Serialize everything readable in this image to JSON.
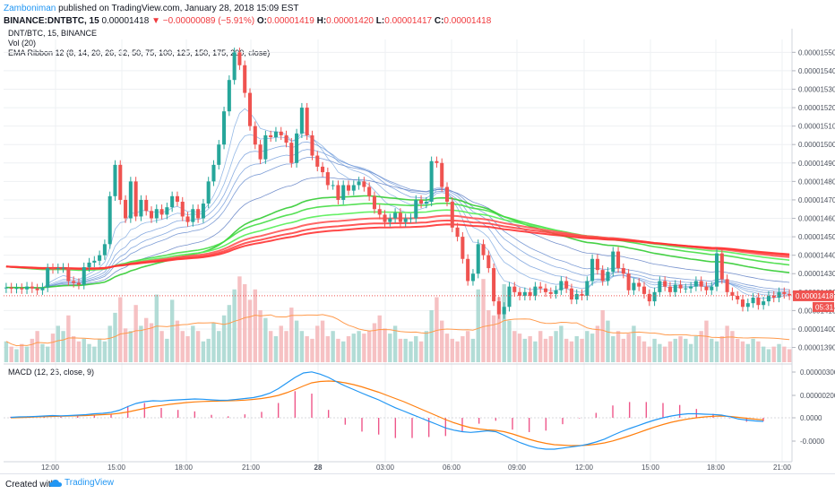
{
  "header": {
    "author": "Zamboniman",
    "published_text": "published on TradingView.com, January 28, 2018 15:09 EST",
    "symbol": "BINANCE:DNTBTC, 15",
    "last": "0.00001418",
    "change_arrow": "▼",
    "change": "−0.00000089 (−5.91%)",
    "o_label": "O:",
    "o_value": "0.00001419",
    "h_label": "H:",
    "h_value": "0.00001420",
    "l_label": "L:",
    "l_value": "0.00001417",
    "c_label": "C:",
    "c_value": "0.00001418"
  },
  "legend": {
    "title": "DNT/BTC, 15, BINANCE",
    "vol": "Vol (20)",
    "ema": "EMA Ribbon 12 (8, 14, 20, 26, 32, 50, 75, 100, 125, 150, 175, 200, close)",
    "macd": "MACD (12, 26, close, 9)"
  },
  "price_badge": {
    "value": "0.00001418",
    "countdown": "05:31"
  },
  "footer": {
    "created_with": "Created with",
    "brand": "TradingView"
  },
  "colors": {
    "up": "#26a69a",
    "down": "#ef5350",
    "ema_long": "#ff3b3b",
    "ema_mid": "#33dd33",
    "ema_short": "#3366cc",
    "macd": "#2196f3",
    "signal": "#ff7f0e",
    "hist": "#e91e63"
  },
  "chart_data": [
    {
      "type": "candlestick",
      "title": "DNT/BTC, 15, BINANCE",
      "ylim": [
        1.382e-05,
        1.556e-05
      ],
      "y_ticks": [
        "0.00001390",
        "0.00001400",
        "0.00001410",
        "0.00001420",
        "0.00001430",
        "0.00001440",
        "0.00001450",
        "0.00001460",
        "0.00001470",
        "0.00001480",
        "0.00001490",
        "0.00001500",
        "0.00001510",
        "0.00001520",
        "0.00001530",
        "0.00001540",
        "0.00001550"
      ],
      "x_ticks": [
        "12:00",
        "15:00",
        "18:00",
        "21:00",
        "28",
        "03:00",
        "06:00",
        "09:00",
        "12:00",
        "15:00",
        "18:00",
        "21:00"
      ],
      "candles": [
        {
          "o": 1.422,
          "c": 1.4225
        },
        {
          "o": 1.4225,
          "c": 1.4218
        },
        {
          "o": 1.4218,
          "c": 1.4222
        },
        {
          "o": 1.4222,
          "c": 1.4215
        },
        {
          "o": 1.4215,
          "c": 1.423
        },
        {
          "o": 1.423,
          "c": 1.422
        },
        {
          "o": 1.422,
          "c": 1.421
        },
        {
          "o": 1.421,
          "c": 1.4225
        },
        {
          "o": 1.4225,
          "c": 1.433
        },
        {
          "o": 1.433,
          "c": 1.4325
        },
        {
          "o": 1.4325,
          "c": 1.433
        },
        {
          "o": 1.433,
          "c": 1.4332
        },
        {
          "o": 1.4332,
          "c": 1.426
        },
        {
          "o": 1.426,
          "c": 1.425
        },
        {
          "o": 1.425,
          "c": 1.424
        },
        {
          "o": 1.424,
          "c": 1.4335
        },
        {
          "o": 1.4335,
          "c": 1.436
        },
        {
          "o": 1.436,
          "c": 1.437
        },
        {
          "o": 1.437,
          "c": 1.44
        },
        {
          "o": 1.44,
          "c": 1.446
        },
        {
          "o": 1.446,
          "c": 1.472
        },
        {
          "o": 1.472,
          "c": 1.489
        },
        {
          "o": 1.489,
          "c": 1.47
        },
        {
          "o": 1.47,
          "c": 1.46
        },
        {
          "o": 1.46,
          "c": 1.48
        },
        {
          "o": 1.48,
          "c": 1.461
        },
        {
          "o": 1.461,
          "c": 1.47
        },
        {
          "o": 1.47,
          "c": 1.464
        },
        {
          "o": 1.464,
          "c": 1.46
        },
        {
          "o": 1.46,
          "c": 1.465
        },
        {
          "o": 1.465,
          "c": 1.462
        },
        {
          "o": 1.462,
          "c": 1.466
        },
        {
          "o": 1.466,
          "c": 1.472
        },
        {
          "o": 1.472,
          "c": 1.469
        },
        {
          "o": 1.469,
          "c": 1.461
        },
        {
          "o": 1.461,
          "c": 1.458
        },
        {
          "o": 1.458,
          "c": 1.465
        },
        {
          "o": 1.465,
          "c": 1.46
        },
        {
          "o": 1.46,
          "c": 1.468
        },
        {
          "o": 1.468,
          "c": 1.48
        },
        {
          "o": 1.48,
          "c": 1.489
        },
        {
          "o": 1.489,
          "c": 1.5
        },
        {
          "o": 1.5,
          "c": 1.518
        },
        {
          "o": 1.518,
          "c": 1.535
        },
        {
          "o": 1.535,
          "c": 1.55
        },
        {
          "o": 1.55,
          "c": 1.543
        },
        {
          "o": 1.543,
          "c": 1.528
        },
        {
          "o": 1.528,
          "c": 1.51
        },
        {
          "o": 1.51,
          "c": 1.5
        },
        {
          "o": 1.5,
          "c": 1.492
        },
        {
          "o": 1.492,
          "c": 1.505
        },
        {
          "o": 1.505,
          "c": 1.504
        },
        {
          "o": 1.504,
          "c": 1.507
        },
        {
          "o": 1.507,
          "c": 1.505
        },
        {
          "o": 1.505,
          "c": 1.501
        },
        {
          "o": 1.501,
          "c": 1.49
        },
        {
          "o": 1.49,
          "c": 1.506
        },
        {
          "o": 1.506,
          "c": 1.52
        },
        {
          "o": 1.52,
          "c": 1.505
        },
        {
          "o": 1.505,
          "c": 1.494
        },
        {
          "o": 1.494,
          "c": 1.488
        },
        {
          "o": 1.488,
          "c": 1.485
        },
        {
          "o": 1.485,
          "c": 1.478
        },
        {
          "o": 1.478,
          "c": 1.478
        },
        {
          "o": 1.478,
          "c": 1.47
        },
        {
          "o": 1.47,
          "c": 1.478
        },
        {
          "o": 1.478,
          "c": 1.475
        },
        {
          "o": 1.475,
          "c": 1.478
        },
        {
          "o": 1.478,
          "c": 1.48
        },
        {
          "o": 1.48,
          "c": 1.477
        },
        {
          "o": 1.477,
          "c": 1.472
        },
        {
          "o": 1.472,
          "c": 1.465
        },
        {
          "o": 1.465,
          "c": 1.462
        },
        {
          "o": 1.462,
          "c": 1.458
        },
        {
          "o": 1.458,
          "c": 1.46
        },
        {
          "o": 1.46,
          "c": 1.463
        },
        {
          "o": 1.463,
          "c": 1.458
        },
        {
          "o": 1.458,
          "c": 1.46
        },
        {
          "o": 1.46,
          "c": 1.46
        },
        {
          "o": 1.46,
          "c": 1.47
        },
        {
          "o": 1.47,
          "c": 1.468
        },
        {
          "o": 1.468,
          "c": 1.469
        },
        {
          "o": 1.469,
          "c": 1.491
        },
        {
          "o": 1.491,
          "c": 1.49
        },
        {
          "o": 1.49,
          "c": 1.477
        },
        {
          "o": 1.477,
          "c": 1.469
        },
        {
          "o": 1.469,
          "c": 1.455
        },
        {
          "o": 1.455,
          "c": 1.45
        },
        {
          "o": 1.45,
          "c": 1.438
        },
        {
          "o": 1.438,
          "c": 1.426
        },
        {
          "o": 1.426,
          "c": 1.43
        },
        {
          "o": 1.43,
          "c": 1.446
        },
        {
          "o": 1.446,
          "c": 1.44
        },
        {
          "o": 1.44,
          "c": 1.433
        },
        {
          "o": 1.433,
          "c": 1.415
        },
        {
          "o": 1.415,
          "c": 1.408
        },
        {
          "o": 1.408,
          "c": 1.412
        },
        {
          "o": 1.412,
          "c": 1.423
        },
        {
          "o": 1.423,
          "c": 1.42
        },
        {
          "o": 1.42,
          "c": 1.418
        },
        {
          "o": 1.418,
          "c": 1.42
        },
        {
          "o": 1.42,
          "c": 1.418
        },
        {
          "o": 1.418,
          "c": 1.423
        },
        {
          "o": 1.423,
          "c": 1.422
        },
        {
          "o": 1.422,
          "c": 1.42
        },
        {
          "o": 1.42,
          "c": 1.419
        },
        {
          "o": 1.419,
          "c": 1.421
        },
        {
          "o": 1.421,
          "c": 1.426
        },
        {
          "o": 1.426,
          "c": 1.422
        },
        {
          "o": 1.422,
          "c": 1.416
        },
        {
          "o": 1.416,
          "c": 1.419
        },
        {
          "o": 1.419,
          "c": 1.418
        },
        {
          "o": 1.418,
          "c": 1.426
        },
        {
          "o": 1.426,
          "c": 1.438
        },
        {
          "o": 1.438,
          "c": 1.432
        },
        {
          "o": 1.432,
          "c": 1.426
        },
        {
          "o": 1.426,
          "c": 1.431
        },
        {
          "o": 1.431,
          "c": 1.442
        },
        {
          "o": 1.442,
          "c": 1.433
        },
        {
          "o": 1.433,
          "c": 1.43
        },
        {
          "o": 1.43,
          "c": 1.421
        },
        {
          "o": 1.421,
          "c": 1.425
        },
        {
          "o": 1.425,
          "c": 1.423
        },
        {
          "o": 1.423,
          "c": 1.419
        },
        {
          "o": 1.419,
          "c": 1.415
        },
        {
          "o": 1.415,
          "c": 1.42
        },
        {
          "o": 1.42,
          "c": 1.426
        },
        {
          "o": 1.426,
          "c": 1.423
        },
        {
          "o": 1.423,
          "c": 1.42
        },
        {
          "o": 1.42,
          "c": 1.424
        },
        {
          "o": 1.424,
          "c": 1.422
        },
        {
          "o": 1.422,
          "c": 1.422
        },
        {
          "o": 1.422,
          "c": 1.423
        },
        {
          "o": 1.423,
          "c": 1.426
        },
        {
          "o": 1.426,
          "c": 1.423
        },
        {
          "o": 1.423,
          "c": 1.421
        },
        {
          "o": 1.421,
          "c": 1.423
        },
        {
          "o": 1.423,
          "c": 1.441
        },
        {
          "o": 1.441,
          "c": 1.427
        },
        {
          "o": 1.427,
          "c": 1.42
        },
        {
          "o": 1.42,
          "c": 1.418
        },
        {
          "o": 1.418,
          "c": 1.416
        },
        {
          "o": 1.416,
          "c": 1.412
        },
        {
          "o": 1.412,
          "c": 1.414
        },
        {
          "o": 1.414,
          "c": 1.417
        },
        {
          "o": 1.417,
          "c": 1.413
        },
        {
          "o": 1.413,
          "c": 1.415
        },
        {
          "o": 1.415,
          "c": 1.418
        },
        {
          "o": 1.418,
          "c": 1.417
        },
        {
          "o": 1.417,
          "c": 1.42
        },
        {
          "o": 1.42,
          "c": 1.419
        },
        {
          "o": 1.419,
          "c": 1.4182
        }
      ]
    },
    {
      "type": "bar",
      "title": "Vol (20)",
      "values": [
        8,
        6,
        5,
        7,
        6,
        9,
        12,
        7,
        6,
        11,
        14,
        12,
        18,
        10,
        8,
        9,
        7,
        6,
        9,
        8,
        14,
        19,
        25,
        13,
        12,
        22,
        14,
        17,
        15,
        26,
        12,
        9,
        24,
        16,
        12,
        10,
        14,
        12,
        8,
        9,
        15,
        12,
        18,
        22,
        28,
        33,
        30,
        24,
        28,
        20,
        17,
        12,
        10,
        14,
        12,
        21,
        16,
        12,
        10,
        9,
        14,
        16,
        10,
        12,
        9,
        8,
        10,
        11,
        12,
        11,
        12,
        15,
        18,
        13,
        11,
        14,
        9,
        9,
        8,
        10,
        8,
        12,
        20,
        25,
        16,
        11,
        9,
        8,
        10,
        12,
        9,
        28,
        32,
        20,
        18,
        25,
        30,
        16,
        12,
        11,
        9,
        10,
        8,
        12,
        9,
        10,
        12,
        14,
        9,
        8,
        10,
        9,
        12,
        11,
        14,
        20,
        16,
        10,
        12,
        9,
        11,
        14,
        10,
        8,
        6,
        9,
        7,
        6,
        8,
        9,
        10,
        9,
        7,
        10,
        12,
        16,
        9,
        8,
        10,
        14,
        12,
        9,
        8,
        7,
        9,
        8,
        6,
        5,
        6,
        7,
        6,
        5
      ]
    },
    {
      "type": "line",
      "title": "MACD (12, 26, close, 9)",
      "y_ticks": [
        "0.00000300",
        "0.00000200",
        "0.0000",
        "-0.0000"
      ],
      "series": [
        {
          "name": "MACD",
          "values": [
            0.02,
            0.04,
            0.05,
            0.06,
            0.08,
            0.1,
            0.09,
            0.1,
            0.12,
            0.14,
            0.18,
            0.2,
            0.24,
            0.34,
            0.5,
            0.64,
            0.72,
            0.76,
            0.75,
            0.78,
            0.8,
            0.82,
            0.84,
            0.83,
            0.8,
            0.78,
            0.79,
            0.82,
            0.86,
            0.9,
            0.98,
            1.1,
            1.3,
            1.55,
            1.8,
            2.0,
            2.05,
            1.95,
            1.8,
            1.6,
            1.42,
            1.26,
            1.1,
            0.95,
            0.8,
            0.62,
            0.45,
            0.3,
            0.15,
            0.0,
            -0.15,
            -0.3,
            -0.45,
            -0.55,
            -0.62,
            -0.65,
            -0.62,
            -0.58,
            -0.62,
            -0.78,
            -0.96,
            -1.12,
            -1.25,
            -1.35,
            -1.4,
            -1.4,
            -1.35,
            -1.3,
            -1.25,
            -1.18,
            -1.08,
            -0.95,
            -0.78,
            -0.62,
            -0.48,
            -0.35,
            -0.22,
            -0.1,
            0.0,
            0.08,
            0.14,
            0.18,
            0.18,
            0.16,
            0.15,
            0.12,
            0.05,
            -0.05,
            -0.1,
            -0.14,
            -0.16
          ]
        },
        {
          "name": "Signal",
          "values": [
            0.0,
            0.01,
            0.02,
            0.04,
            0.05,
            0.06,
            0.07,
            0.08,
            0.09,
            0.1,
            0.12,
            0.14,
            0.16,
            0.2,
            0.26,
            0.34,
            0.42,
            0.5,
            0.55,
            0.6,
            0.64,
            0.68,
            0.71,
            0.73,
            0.74,
            0.75,
            0.76,
            0.77,
            0.79,
            0.82,
            0.86,
            0.92,
            1.0,
            1.12,
            1.26,
            1.42,
            1.56,
            1.62,
            1.64,
            1.62,
            1.56,
            1.48,
            1.38,
            1.26,
            1.14,
            1.0,
            0.86,
            0.72,
            0.56,
            0.4,
            0.24,
            0.08,
            -0.08,
            -0.22,
            -0.34,
            -0.44,
            -0.5,
            -0.54,
            -0.56,
            -0.62,
            -0.72,
            -0.84,
            -0.96,
            -1.06,
            -1.14,
            -1.2,
            -1.22,
            -1.24,
            -1.24,
            -1.22,
            -1.18,
            -1.12,
            -1.03,
            -0.92,
            -0.8,
            -0.67,
            -0.54,
            -0.41,
            -0.3,
            -0.2,
            -0.12,
            -0.05,
            0.0,
            0.04,
            0.07,
            0.08,
            0.06,
            0.02,
            -0.02,
            -0.06,
            -0.09
          ]
        }
      ]
    }
  ]
}
